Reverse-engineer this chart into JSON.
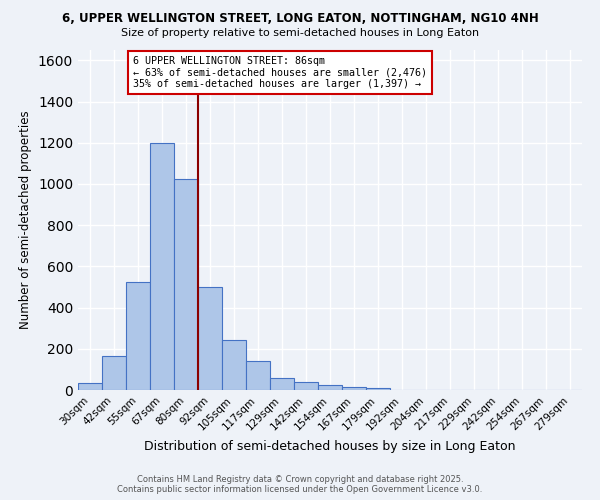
{
  "title_line1": "6, UPPER WELLINGTON STREET, LONG EATON, NOTTINGHAM, NG10 4NH",
  "title_line2": "Size of property relative to semi-detached houses in Long Eaton",
  "xlabel": "Distribution of semi-detached houses by size in Long Eaton",
  "ylabel": "Number of semi-detached properties",
  "categories": [
    "30sqm",
    "42sqm",
    "55sqm",
    "67sqm",
    "80sqm",
    "92sqm",
    "105sqm",
    "117sqm",
    "129sqm",
    "142sqm",
    "154sqm",
    "167sqm",
    "179sqm",
    "192sqm",
    "204sqm",
    "217sqm",
    "229sqm",
    "242sqm",
    "254sqm",
    "267sqm",
    "279sqm"
  ],
  "values": [
    35,
    165,
    525,
    1200,
    1025,
    500,
    245,
    140,
    60,
    37,
    25,
    15,
    8,
    0,
    0,
    0,
    0,
    0,
    0,
    0,
    0
  ],
  "bar_color": "#aec6e8",
  "bar_edge_color": "#4472c4",
  "property_line_color": "#8b0000",
  "annotation_title": "6 UPPER WELLINGTON STREET: 86sqm",
  "annotation_line1": "← 63% of semi-detached houses are smaller (2,476)",
  "annotation_line2": "35% of semi-detached houses are larger (1,397) →",
  "annotation_box_color": "#ffffff",
  "annotation_box_edge": "#cc0000",
  "ylim": [
    0,
    1650
  ],
  "yticks": [
    0,
    200,
    400,
    600,
    800,
    1000,
    1200,
    1400,
    1600
  ],
  "footer_line1": "Contains HM Land Registry data © Crown copyright and database right 2025.",
  "footer_line2": "Contains public sector information licensed under the Open Government Licence v3.0.",
  "bg_color": "#eef2f8",
  "grid_color": "#ffffff"
}
